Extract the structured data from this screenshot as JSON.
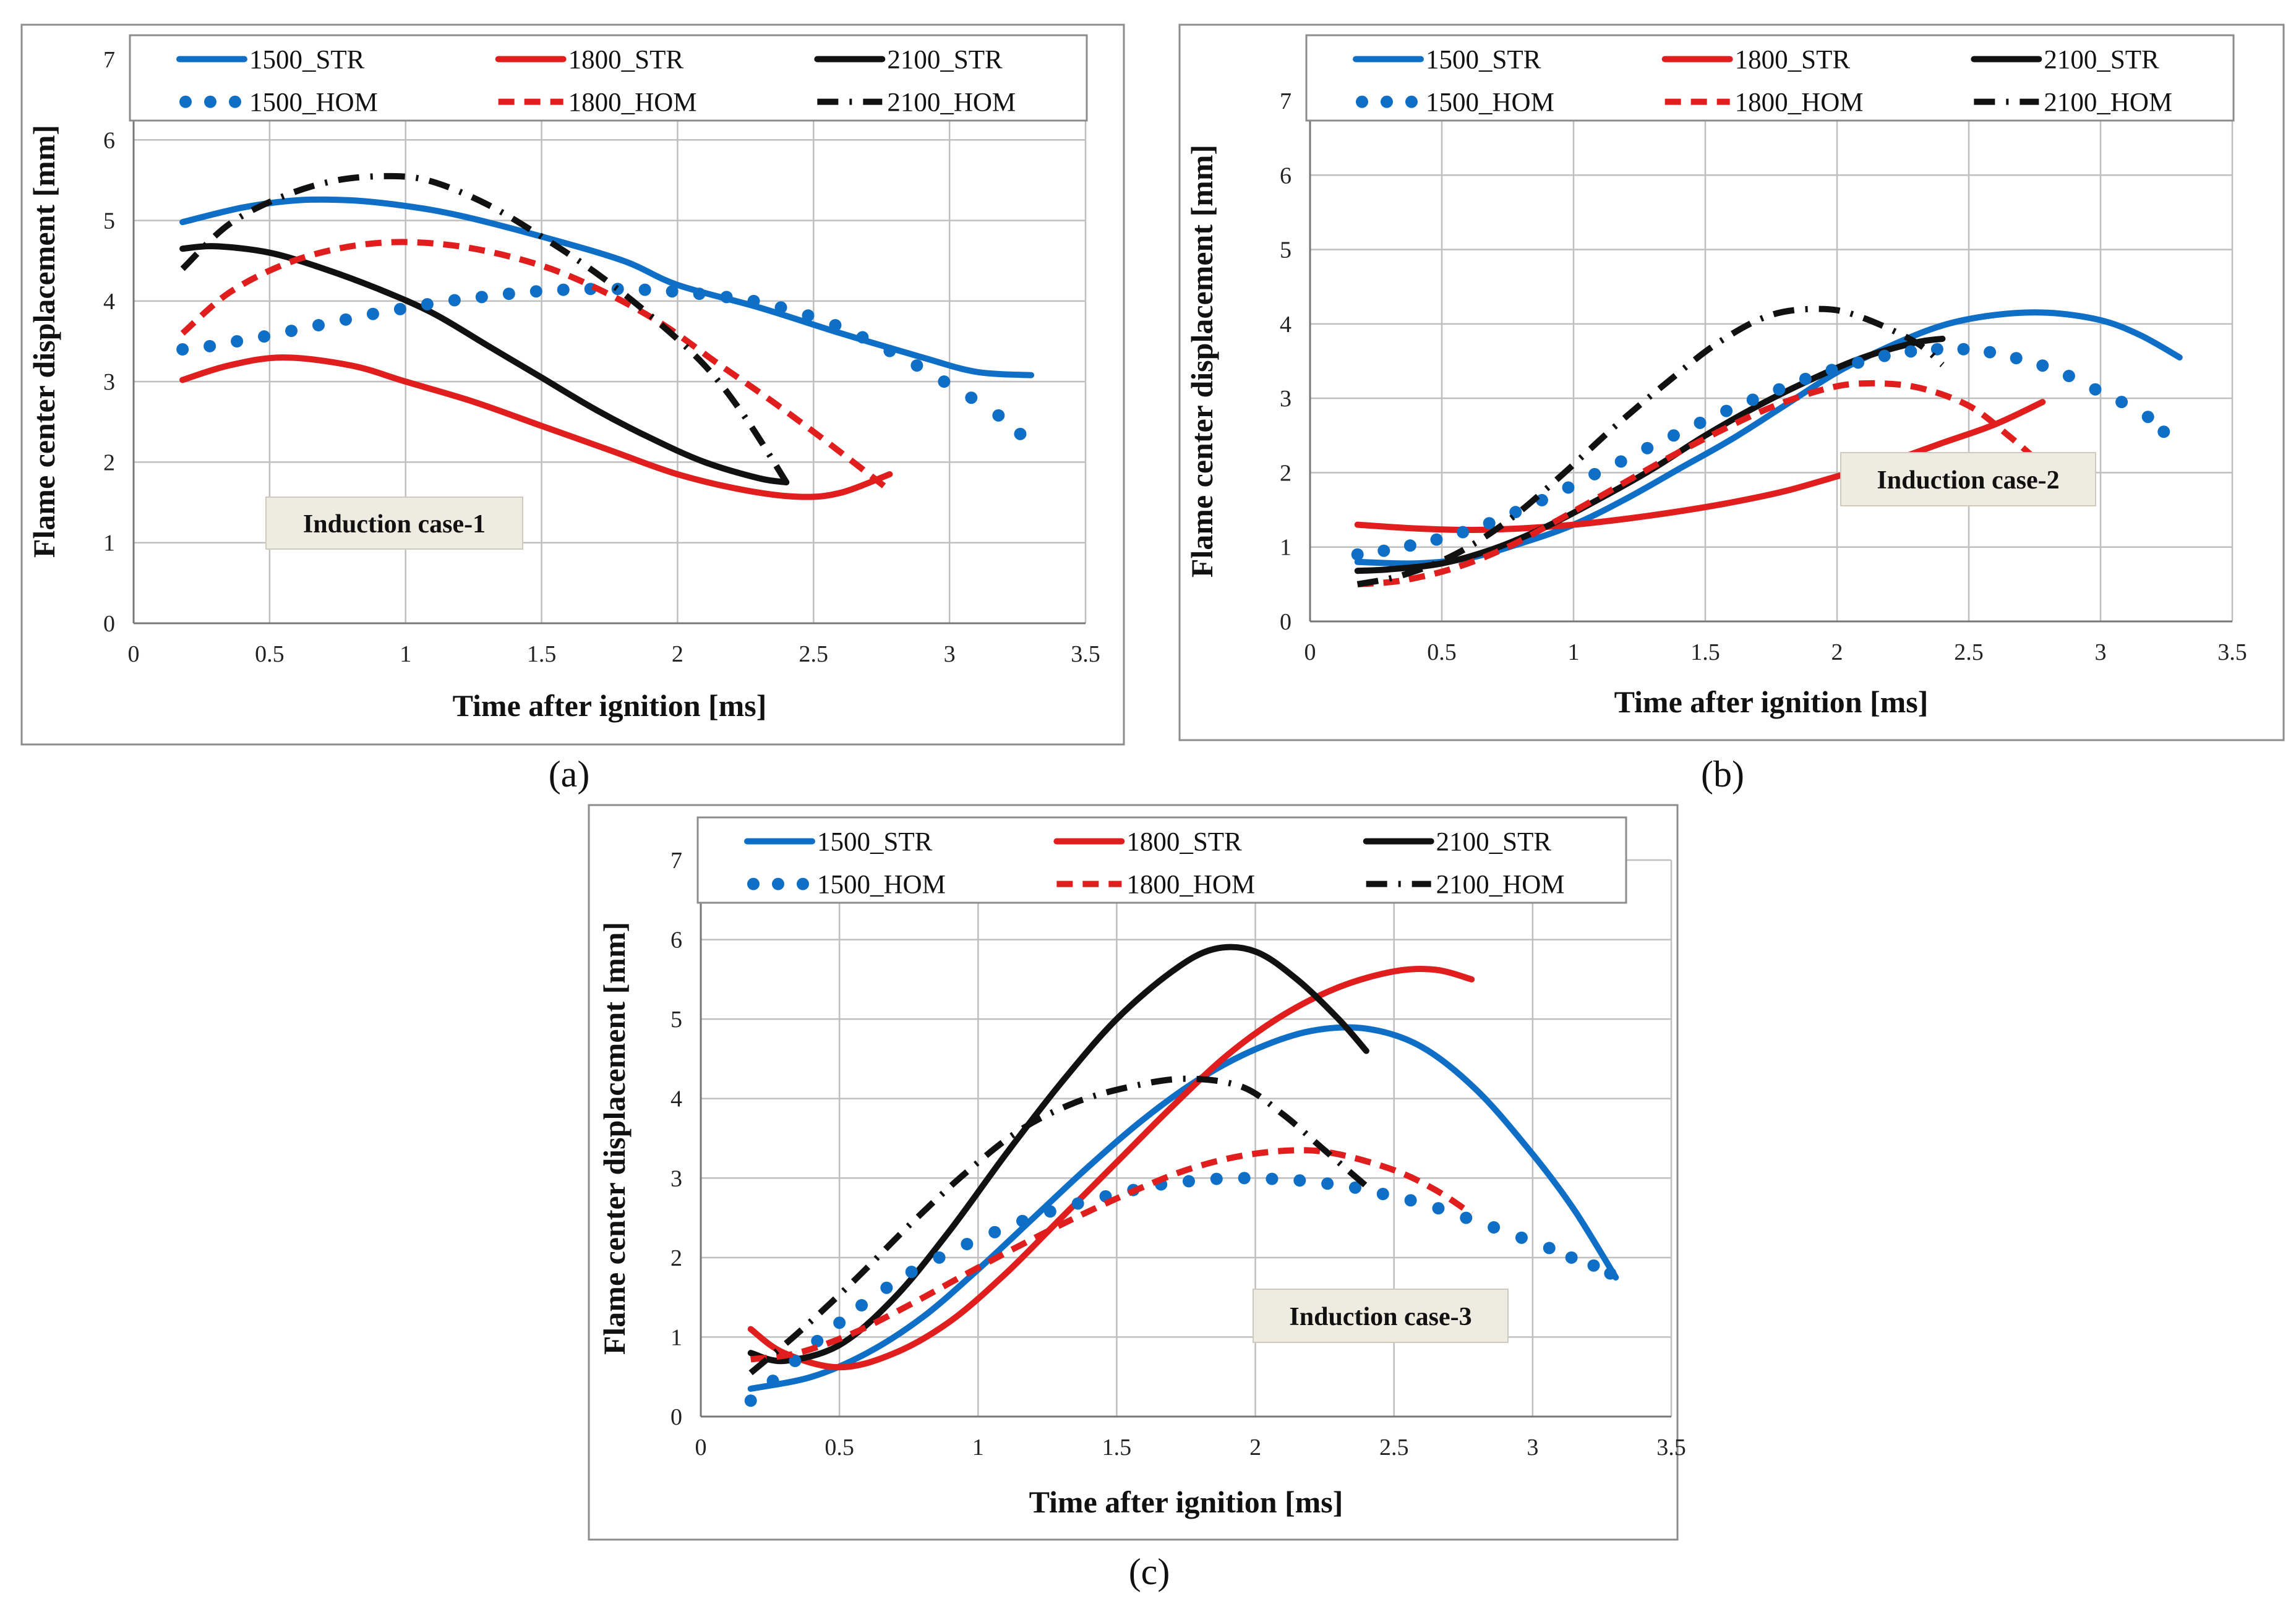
{
  "colors": {
    "blue": "#0F6FC6",
    "red": "#E01E1E",
    "black": "#111111",
    "grid": "#BFBFBF",
    "annotation_bg": "#EEEBE0"
  },
  "chart_data": [
    {
      "panel_label": "(a)",
      "type": "line",
      "xlabel": "Time after ignition  [ms]",
      "ylabel": "Flame center displacement  [mm]",
      "xlim": [
        0,
        3.5
      ],
      "ylim": [
        0,
        7
      ],
      "x_ticks": [
        "0",
        "0.5",
        "1",
        "1.5",
        "2",
        "2.5",
        "3",
        "3.5"
      ],
      "y_ticks": [
        "0",
        "1",
        "2",
        "3",
        "4",
        "5",
        "6",
        "7"
      ],
      "grid": true,
      "legend_position": "top",
      "annotation": "Induction case-1",
      "series": [
        {
          "name": "1500_STR",
          "color": "blue",
          "style": "solid",
          "x": [
            0.18,
            0.4,
            0.6,
            0.8,
            1.0,
            1.2,
            1.5,
            1.8,
            2.0,
            2.3,
            2.6,
            2.9,
            3.1,
            3.3
          ],
          "y": [
            4.98,
            5.16,
            5.25,
            5.25,
            5.18,
            5.06,
            4.8,
            4.5,
            4.2,
            3.92,
            3.6,
            3.3,
            3.12,
            3.08
          ]
        },
        {
          "name": "1800_STR",
          "color": "red",
          "style": "solid",
          "x": [
            0.18,
            0.35,
            0.55,
            0.8,
            1.0,
            1.25,
            1.5,
            1.75,
            2.0,
            2.25,
            2.45,
            2.6,
            2.78
          ],
          "y": [
            3.02,
            3.2,
            3.3,
            3.2,
            3.0,
            2.75,
            2.45,
            2.15,
            1.85,
            1.65,
            1.57,
            1.62,
            1.85
          ]
        },
        {
          "name": "2100_STR",
          "color": "black",
          "style": "solid",
          "x": [
            0.18,
            0.3,
            0.5,
            0.7,
            0.9,
            1.1,
            1.3,
            1.5,
            1.7,
            1.9,
            2.1,
            2.3,
            2.4
          ],
          "y": [
            4.65,
            4.68,
            4.6,
            4.4,
            4.15,
            3.85,
            3.45,
            3.05,
            2.65,
            2.3,
            2.0,
            1.8,
            1.75
          ]
        },
        {
          "name": "1500_HOM",
          "color": "blue",
          "style": "dotted",
          "x": [
            0.18,
            0.28,
            0.38,
            0.48,
            0.58,
            0.68,
            0.78,
            0.88,
            0.98,
            1.08,
            1.18,
            1.28,
            1.38,
            1.48,
            1.58,
            1.68,
            1.78,
            1.88,
            1.98,
            2.08,
            2.18,
            2.28,
            2.38,
            2.48,
            2.58,
            2.68,
            2.78,
            2.88,
            2.98,
            3.08,
            3.18,
            3.26
          ],
          "y": [
            3.4,
            3.44,
            3.5,
            3.56,
            3.63,
            3.7,
            3.77,
            3.84,
            3.9,
            3.96,
            4.01,
            4.05,
            4.09,
            4.12,
            4.14,
            4.15,
            4.15,
            4.14,
            4.12,
            4.09,
            4.05,
            4.0,
            3.92,
            3.82,
            3.7,
            3.55,
            3.38,
            3.2,
            3.0,
            2.8,
            2.58,
            2.35
          ]
        },
        {
          "name": "1800_HOM",
          "color": "red",
          "style": "dashed",
          "x": [
            0.18,
            0.35,
            0.55,
            0.75,
            0.95,
            1.15,
            1.35,
            1.55,
            1.75,
            1.95,
            2.15,
            2.35,
            2.55,
            2.78
          ],
          "y": [
            3.6,
            4.1,
            4.45,
            4.65,
            4.73,
            4.7,
            4.58,
            4.38,
            4.08,
            3.7,
            3.22,
            2.75,
            2.25,
            1.65
          ]
        },
        {
          "name": "2100_HOM",
          "color": "black",
          "style": "dashdot",
          "x": [
            0.18,
            0.35,
            0.55,
            0.75,
            0.95,
            1.1,
            1.3,
            1.5,
            1.7,
            1.9,
            2.1,
            2.25,
            2.4
          ],
          "y": [
            4.4,
            4.95,
            5.3,
            5.5,
            5.55,
            5.48,
            5.2,
            4.8,
            4.35,
            3.82,
            3.2,
            2.55,
            1.75
          ]
        }
      ]
    },
    {
      "panel_label": "(b)",
      "type": "line",
      "xlabel": "Time after ignition  [ms]",
      "ylabel": "Flame center displacement  [mm]",
      "xlim": [
        0,
        3.5
      ],
      "ylim": [
        0,
        7
      ],
      "x_ticks": [
        "0",
        "0.5",
        "1",
        "1.5",
        "2",
        "2.5",
        "3",
        "3.5"
      ],
      "y_ticks": [
        "0",
        "1",
        "2",
        "3",
        "4",
        "5",
        "6",
        "7"
      ],
      "grid": true,
      "legend_position": "top",
      "annotation": "Induction case-2",
      "series": [
        {
          "name": "1500_STR",
          "color": "blue",
          "style": "solid",
          "x": [
            0.18,
            0.4,
            0.6,
            0.8,
            1.0,
            1.2,
            1.4,
            1.6,
            1.8,
            2.0,
            2.2,
            2.4,
            2.6,
            2.8,
            3.0,
            3.15,
            3.3
          ],
          "y": [
            0.8,
            0.78,
            0.85,
            1.05,
            1.3,
            1.65,
            2.05,
            2.45,
            2.9,
            3.35,
            3.7,
            3.98,
            4.12,
            4.15,
            4.05,
            3.85,
            3.55
          ]
        },
        {
          "name": "1800_STR",
          "color": "red",
          "style": "solid",
          "x": [
            0.18,
            0.4,
            0.6,
            0.8,
            1.0,
            1.2,
            1.4,
            1.6,
            1.8,
            2.0,
            2.2,
            2.4,
            2.6,
            2.78
          ],
          "y": [
            1.3,
            1.25,
            1.23,
            1.25,
            1.3,
            1.38,
            1.48,
            1.6,
            1.75,
            1.95,
            2.15,
            2.4,
            2.65,
            2.95
          ]
        },
        {
          "name": "2100_STR",
          "color": "black",
          "style": "solid",
          "x": [
            0.18,
            0.3,
            0.5,
            0.7,
            0.9,
            1.1,
            1.3,
            1.5,
            1.7,
            1.9,
            2.1,
            2.3,
            2.4
          ],
          "y": [
            0.68,
            0.7,
            0.78,
            0.98,
            1.28,
            1.65,
            2.05,
            2.5,
            2.9,
            3.25,
            3.55,
            3.75,
            3.8
          ]
        },
        {
          "name": "1500_HOM",
          "color": "blue",
          "style": "dotted",
          "x": [
            0.18,
            0.28,
            0.38,
            0.48,
            0.58,
            0.68,
            0.78,
            0.88,
            0.98,
            1.08,
            1.18,
            1.28,
            1.38,
            1.48,
            1.58,
            1.68,
            1.78,
            1.88,
            1.98,
            2.08,
            2.18,
            2.28,
            2.38,
            2.48,
            2.58,
            2.68,
            2.78,
            2.88,
            2.98,
            3.08,
            3.18,
            3.24
          ],
          "y": [
            0.9,
            0.95,
            1.02,
            1.1,
            1.2,
            1.32,
            1.47,
            1.63,
            1.8,
            1.98,
            2.15,
            2.33,
            2.5,
            2.67,
            2.83,
            2.98,
            3.12,
            3.26,
            3.38,
            3.48,
            3.57,
            3.63,
            3.66,
            3.66,
            3.62,
            3.54,
            3.44,
            3.3,
            3.12,
            2.95,
            2.75,
            2.55
          ]
        },
        {
          "name": "1800_HOM",
          "color": "red",
          "style": "dashed",
          "x": [
            0.18,
            0.35,
            0.55,
            0.75,
            0.95,
            1.15,
            1.35,
            1.55,
            1.75,
            1.95,
            2.1,
            2.3,
            2.5,
            2.65,
            2.78
          ],
          "y": [
            0.5,
            0.55,
            0.72,
            1.0,
            1.38,
            1.78,
            2.18,
            2.55,
            2.88,
            3.12,
            3.2,
            3.15,
            2.9,
            2.5,
            2.1
          ]
        },
        {
          "name": "2100_HOM",
          "color": "black",
          "style": "dashdot",
          "x": [
            0.18,
            0.35,
            0.55,
            0.75,
            0.95,
            1.15,
            1.35,
            1.55,
            1.75,
            1.95,
            2.1,
            2.3,
            2.4
          ],
          "y": [
            0.5,
            0.62,
            0.9,
            1.35,
            1.95,
            2.6,
            3.2,
            3.75,
            4.12,
            4.2,
            4.08,
            3.75,
            3.45
          ]
        }
      ]
    },
    {
      "panel_label": "(c)",
      "type": "line",
      "xlabel": "Time after ignition  [ms]",
      "ylabel": "Flame center displacement  [mm]",
      "xlim": [
        0,
        3.5
      ],
      "ylim": [
        0,
        7
      ],
      "x_ticks": [
        "0",
        "0.5",
        "1",
        "1.5",
        "2",
        "2.5",
        "3",
        "3.5"
      ],
      "y_ticks": [
        "0",
        "1",
        "2",
        "3",
        "4",
        "5",
        "6",
        "7"
      ],
      "grid": true,
      "legend_position": "top",
      "annotation": "Induction case-3",
      "series": [
        {
          "name": "1500_STR",
          "color": "blue",
          "style": "solid",
          "x": [
            0.18,
            0.4,
            0.6,
            0.8,
            1.0,
            1.2,
            1.4,
            1.6,
            1.8,
            2.0,
            2.2,
            2.4,
            2.6,
            2.8,
            3.0,
            3.15,
            3.3
          ],
          "y": [
            0.35,
            0.5,
            0.8,
            1.25,
            1.85,
            2.5,
            3.15,
            3.75,
            4.25,
            4.62,
            4.85,
            4.88,
            4.65,
            4.1,
            3.3,
            2.6,
            1.75
          ]
        },
        {
          "name": "1800_STR",
          "color": "red",
          "style": "solid",
          "x": [
            0.18,
            0.3,
            0.5,
            0.7,
            0.9,
            1.1,
            1.3,
            1.5,
            1.7,
            1.9,
            2.1,
            2.3,
            2.5,
            2.65,
            2.78
          ],
          "y": [
            1.1,
            0.8,
            0.62,
            0.8,
            1.2,
            1.8,
            2.5,
            3.2,
            3.9,
            4.55,
            5.05,
            5.4,
            5.6,
            5.62,
            5.5
          ]
        },
        {
          "name": "2100_STR",
          "color": "black",
          "style": "solid",
          "x": [
            0.18,
            0.3,
            0.5,
            0.7,
            0.9,
            1.1,
            1.3,
            1.5,
            1.7,
            1.85,
            2.0,
            2.15,
            2.3,
            2.4
          ],
          "y": [
            0.8,
            0.7,
            0.9,
            1.5,
            2.35,
            3.3,
            4.2,
            5.0,
            5.6,
            5.88,
            5.85,
            5.5,
            5.0,
            4.6
          ]
        },
        {
          "name": "1500_HOM",
          "color": "blue",
          "style": "dotted",
          "x": [
            0.18,
            0.26,
            0.34,
            0.42,
            0.5,
            0.58,
            0.67,
            0.76,
            0.86,
            0.96,
            1.06,
            1.16,
            1.26,
            1.36,
            1.46,
            1.56,
            1.66,
            1.76,
            1.86,
            1.96,
            2.06,
            2.16,
            2.26,
            2.36,
            2.46,
            2.56,
            2.66,
            2.76,
            2.86,
            2.96,
            3.06,
            3.14,
            3.22,
            3.28
          ],
          "y": [
            0.2,
            0.45,
            0.7,
            0.95,
            1.18,
            1.4,
            1.62,
            1.82,
            2.0,
            2.17,
            2.32,
            2.46,
            2.58,
            2.68,
            2.77,
            2.85,
            2.92,
            2.96,
            2.99,
            3.0,
            2.99,
            2.97,
            2.93,
            2.88,
            2.8,
            2.72,
            2.62,
            2.5,
            2.38,
            2.25,
            2.12,
            2.0,
            1.9,
            1.8
          ]
        },
        {
          "name": "1800_HOM",
          "color": "red",
          "style": "dashed",
          "x": [
            0.18,
            0.35,
            0.55,
            0.75,
            0.95,
            1.15,
            1.35,
            1.55,
            1.75,
            1.95,
            2.15,
            2.3,
            2.5,
            2.65,
            2.78
          ],
          "y": [
            0.72,
            0.8,
            1.05,
            1.4,
            1.78,
            2.15,
            2.5,
            2.82,
            3.1,
            3.28,
            3.35,
            3.3,
            3.1,
            2.85,
            2.55
          ]
        },
        {
          "name": "2100_HOM",
          "color": "black",
          "style": "dashdot",
          "x": [
            0.18,
            0.35,
            0.55,
            0.75,
            0.95,
            1.15,
            1.35,
            1.55,
            1.75,
            1.95,
            2.1,
            2.25,
            2.4
          ],
          "y": [
            0.55,
            1.05,
            1.7,
            2.4,
            3.05,
            3.6,
            3.95,
            4.15,
            4.25,
            4.15,
            3.8,
            3.35,
            2.9
          ]
        }
      ]
    }
  ]
}
